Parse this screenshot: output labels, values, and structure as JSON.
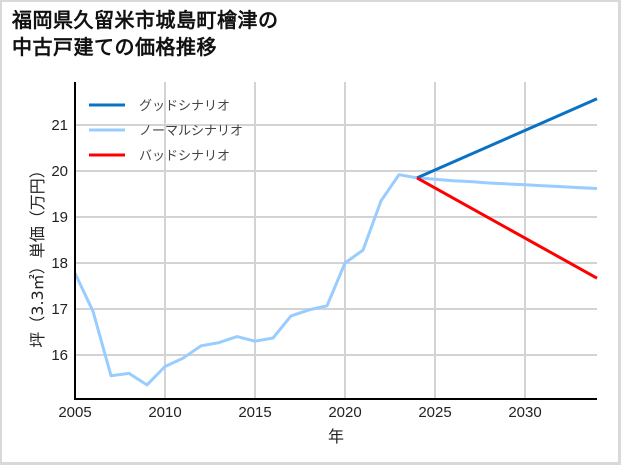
{
  "title": {
    "line1": "福岡県久留米市城島町檜津の",
    "line2": "中古戸建ての価格推移"
  },
  "chart_data": {
    "type": "line",
    "title": "福岡県久留米市城島町檜津の中古戸建ての価格推移",
    "xlabel": "年",
    "ylabel": "坪（3.3㎡）単価（万円）",
    "xlim": [
      2005,
      2034
    ],
    "ylim": [
      15.04,
      21.93
    ],
    "x_ticks": [
      2005,
      2010,
      2015,
      2020,
      2025,
      2030
    ],
    "y_ticks": [
      16,
      17,
      18,
      19,
      20,
      21
    ],
    "grid": true,
    "legend_position": "upper left",
    "series": [
      {
        "name": "グッドシナリオ",
        "color": "#0a72c2",
        "x": [
          2024,
          2034
        ],
        "values": [
          19.85,
          21.57
        ]
      },
      {
        "name": "ノーマルシナリオ",
        "color": "#99ccff",
        "x": [
          2005,
          2006,
          2007,
          2008,
          2009,
          2010,
          2011,
          2012,
          2013,
          2014,
          2015,
          2016,
          2017,
          2018,
          2019,
          2020,
          2021,
          2022,
          2023,
          2024,
          2025,
          2026,
          2027,
          2028,
          2029,
          2030,
          2031,
          2032,
          2033,
          2034
        ],
        "values": [
          17.78,
          16.95,
          15.55,
          15.6,
          15.35,
          15.75,
          15.93,
          16.2,
          16.27,
          16.4,
          16.3,
          16.37,
          16.85,
          16.98,
          17.07,
          18.0,
          18.28,
          19.35,
          19.92,
          19.85,
          19.82,
          19.79,
          19.77,
          19.74,
          19.72,
          19.7,
          19.68,
          19.66,
          19.64,
          19.62
        ]
      },
      {
        "name": "バッドシナリオ",
        "color": "#ff0000",
        "x": [
          2024,
          2034
        ],
        "values": [
          19.85,
          17.67
        ]
      }
    ]
  },
  "legend": [
    {
      "label": "グッドシナリオ",
      "color": "#0a72c2"
    },
    {
      "label": "ノーマルシナリオ",
      "color": "#99ccff"
    },
    {
      "label": "バッドシナリオ",
      "color": "#ff0000"
    }
  ],
  "axes": {
    "xlabel": "年",
    "ylabel": "坪（3.3㎡）単価（万円）"
  }
}
